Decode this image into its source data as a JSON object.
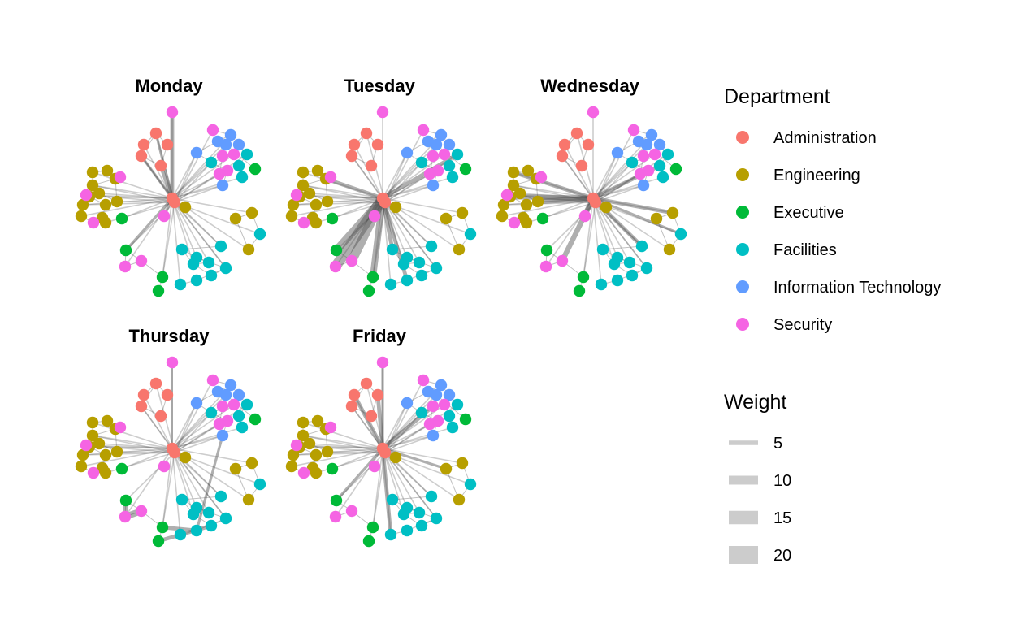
{
  "panels": [
    {
      "title": "Monday"
    },
    {
      "title": "Tuesday"
    },
    {
      "title": "Wednesday"
    },
    {
      "title": "Thursday"
    },
    {
      "title": "Friday"
    }
  ],
  "legend_department": {
    "title": "Department",
    "items": [
      {
        "label": "Administration",
        "color": "#F8766D"
      },
      {
        "label": "Engineering",
        "color": "#B79F00"
      },
      {
        "label": "Executive",
        "color": "#00BA38"
      },
      {
        "label": "Facilities",
        "color": "#00BFC4"
      },
      {
        "label": "Information Technology",
        "color": "#619CFF"
      },
      {
        "label": "Security",
        "color": "#F564E3"
      }
    ]
  },
  "legend_weight": {
    "title": "Weight",
    "items": [
      {
        "label": "5",
        "value": 5
      },
      {
        "label": "10",
        "value": 10
      },
      {
        "label": "15",
        "value": 15
      },
      {
        "label": "20",
        "value": 20
      }
    ]
  },
  "edge_color": "#4d4d4d"
}
